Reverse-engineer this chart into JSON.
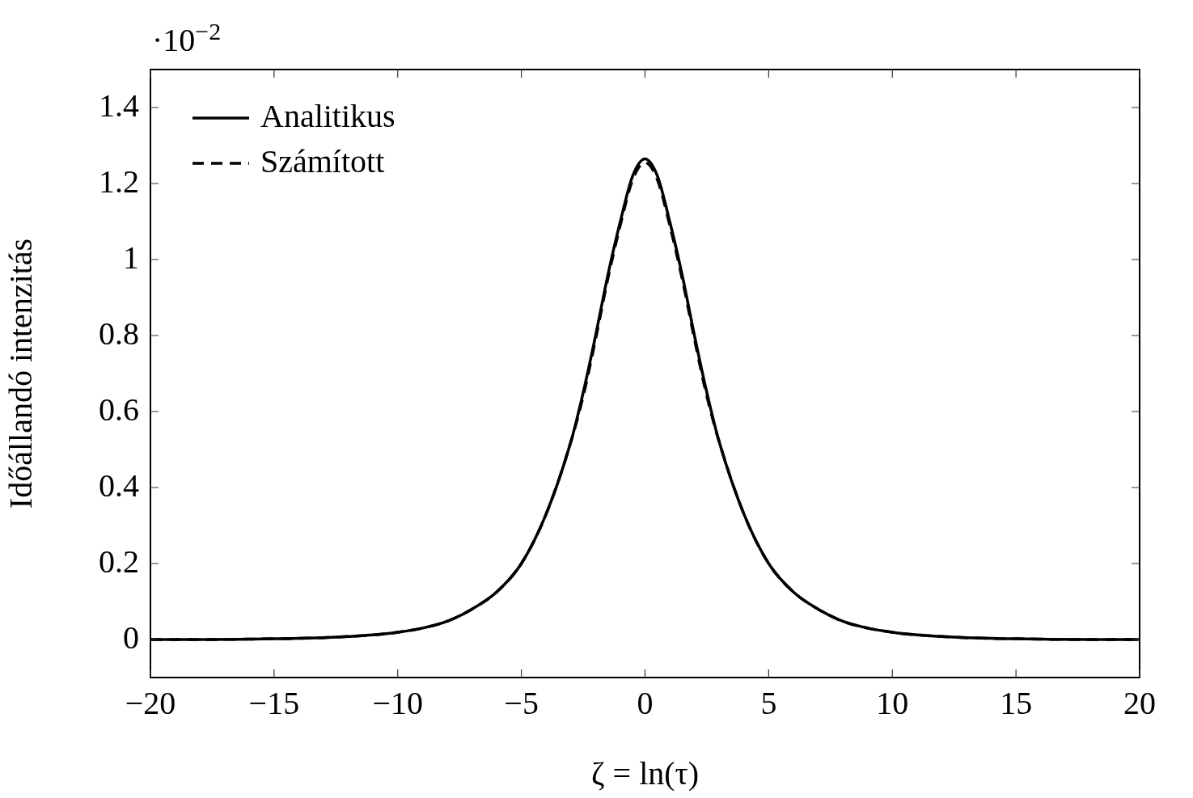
{
  "chart_data": {
    "type": "line",
    "xlabel": "ζ = ln(τ)",
    "ylabel": "Időállandó intenzitás",
    "annotations": [
      "·10$^{−2}$"
    ],
    "x": [
      -20,
      -18,
      -16,
      -15,
      -14,
      -13,
      -12,
      -11,
      -10,
      -9,
      -8,
      -7,
      -6,
      -5,
      -4,
      -3,
      -2.5,
      -2,
      -1.5,
      -1,
      -0.5,
      0,
      0.5,
      1,
      1.5,
      2,
      2.5,
      3,
      4,
      5,
      6,
      7,
      8,
      9,
      10,
      11,
      12,
      13,
      14,
      15,
      16,
      18,
      20
    ],
    "series": [
      {
        "name": "Analitikus",
        "color": "#000000",
        "line_style": "solid",
        "values": [
          0,
          0,
          0.001,
          0.002,
          0.003,
          0.005,
          0.008,
          0.012,
          0.019,
          0.03,
          0.048,
          0.08,
          0.125,
          0.2,
          0.33,
          0.52,
          0.65,
          0.8,
          0.96,
          1.1,
          1.22,
          1.265,
          1.22,
          1.1,
          0.96,
          0.8,
          0.65,
          0.52,
          0.33,
          0.2,
          0.125,
          0.08,
          0.048,
          0.03,
          0.019,
          0.012,
          0.008,
          0.005,
          0.003,
          0.002,
          0.001,
          0,
          0
        ]
      },
      {
        "name": "Számított",
        "color": "#000000",
        "line_style": "dashed",
        "values": [
          0,
          0,
          0.001,
          0.002,
          0.003,
          0.005,
          0.008,
          0.012,
          0.019,
          0.03,
          0.048,
          0.08,
          0.125,
          0.2,
          0.33,
          0.52,
          0.64,
          0.79,
          0.95,
          1.09,
          1.21,
          1.255,
          1.21,
          1.09,
          0.95,
          0.79,
          0.64,
          0.52,
          0.33,
          0.2,
          0.125,
          0.08,
          0.048,
          0.03,
          0.019,
          0.012,
          0.008,
          0.005,
          0.003,
          0.002,
          0.001,
          0,
          0
        ]
      }
    ],
    "xlim": [
      -20,
      20
    ],
    "xticks": [
      -20,
      -15,
      -10,
      -5,
      0,
      5,
      10,
      15,
      20
    ],
    "ylim": [
      -0.1,
      1.5
    ],
    "yticks": [
      0,
      0.2,
      0.4,
      0.6,
      0.8,
      1,
      1.2,
      1.4
    ],
    "grid": false,
    "legend": "top left",
    "marker": "none"
  }
}
